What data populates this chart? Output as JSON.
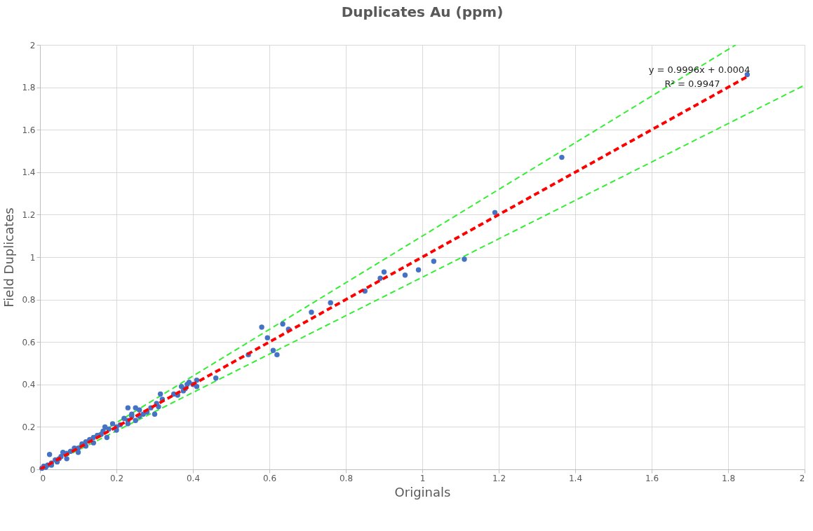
{
  "chart_data": {
    "type": "scatter",
    "title": "Duplicates  Au (ppm)",
    "xlabel": "Originals",
    "ylabel": "Field Duplicates",
    "xlim": [
      0,
      2
    ],
    "ylim": [
      0,
      2
    ],
    "xticks": [
      0,
      0.2,
      0.4,
      0.6,
      0.8,
      1,
      1.2,
      1.4,
      1.6,
      1.8,
      2
    ],
    "yticks": [
      0,
      0.2,
      0.4,
      0.6,
      0.8,
      1,
      1.2,
      1.4,
      1.6,
      1.8,
      2
    ],
    "grid": true,
    "annotations": [
      "y = 0.9996x + 0.0004",
      "R² = 0.9947"
    ],
    "series": [
      {
        "type": "line",
        "color": "#33ee33",
        "line_style": "dashed",
        "x": [
          0,
          1.82
        ],
        "values": [
          0,
          2
        ]
      },
      {
        "type": "line",
        "color": "#33ee33",
        "line_style": "dashed",
        "x": [
          0,
          2
        ],
        "values": [
          0,
          1.81
        ]
      },
      {
        "marker": "circle",
        "color": "#4472c4",
        "x": [
          1.85,
          1.365,
          1.19,
          1.11,
          1.03,
          0.99,
          0.955,
          0.9,
          0.89,
          0.85,
          0.76,
          0.71,
          0.65,
          0.635,
          0.58,
          0.595,
          0.61,
          0.62,
          0.545,
          0.46,
          0.41,
          0.41,
          0.4,
          0.39,
          0.38,
          0.37,
          0.36,
          0.35,
          0.385,
          0.375,
          0.315,
          0.32,
          0.305,
          0.3,
          0.31,
          0.29,
          0.28,
          0.27,
          0.26,
          0.25,
          0.23,
          0.24,
          0.25,
          0.23,
          0.22,
          0.23,
          0.24,
          0.26,
          0.21,
          0.2,
          0.19,
          0.2,
          0.18,
          0.17,
          0.165,
          0.175,
          0.16,
          0.15,
          0.14,
          0.14,
          0.13,
          0.12,
          0.12,
          0.11,
          0.1,
          0.1,
          0.09,
          0.08,
          0.07,
          0.07,
          0.06,
          0.05,
          0.04,
          0.03,
          0.025,
          0.02,
          0.015,
          0.01,
          0.005,
          0.03,
          0.045,
          0.055
        ],
        "values": [
          1.86,
          1.47,
          1.21,
          0.99,
          0.98,
          0.94,
          0.915,
          0.93,
          0.9,
          0.84,
          0.785,
          0.74,
          0.66,
          0.685,
          0.67,
          0.62,
          0.56,
          0.54,
          0.54,
          0.43,
          0.42,
          0.39,
          0.4,
          0.41,
          0.38,
          0.39,
          0.35,
          0.355,
          0.4,
          0.37,
          0.355,
          0.33,
          0.31,
          0.26,
          0.295,
          0.29,
          0.27,
          0.26,
          0.28,
          0.29,
          0.29,
          0.25,
          0.23,
          0.23,
          0.24,
          0.215,
          0.26,
          0.25,
          0.21,
          0.2,
          0.215,
          0.185,
          0.19,
          0.2,
          0.18,
          0.15,
          0.165,
          0.16,
          0.15,
          0.125,
          0.14,
          0.13,
          0.11,
          0.12,
          0.1,
          0.08,
          0.1,
          0.085,
          0.075,
          0.05,
          0.08,
          0.05,
          0.045,
          0.03,
          0.07,
          0.02,
          0.01,
          0.015,
          0.005,
          0.02,
          0.035,
          0.06
        ]
      },
      {
        "type": "line",
        "color": "#ff0000",
        "line_style": "dashed",
        "x": [
          0,
          1.85
        ],
        "values": [
          0,
          1.85
        ]
      }
    ]
  }
}
